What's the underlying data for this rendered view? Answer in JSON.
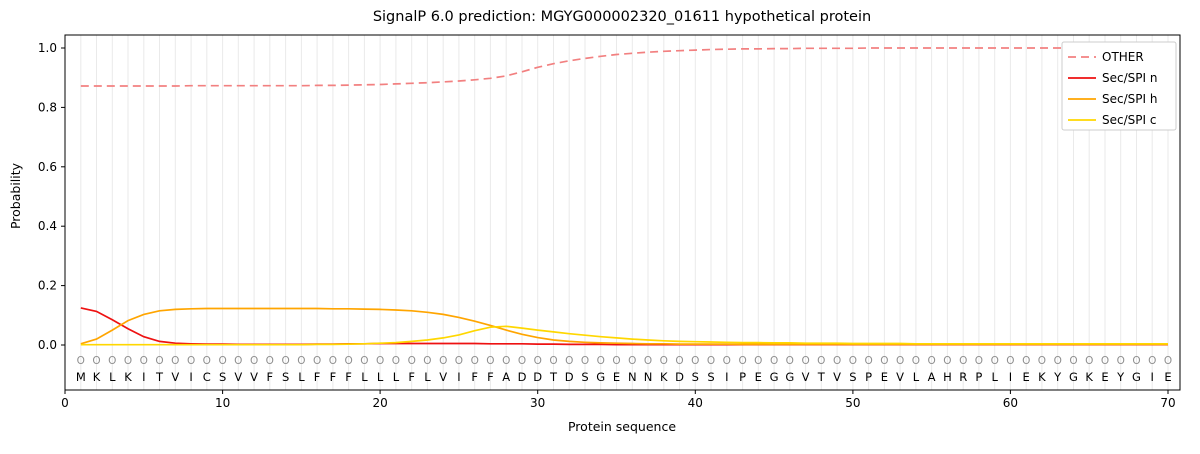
{
  "chart_data": {
    "type": "line",
    "title": "SignalP 6.0 prediction: MGYG000002320_01611 hypothetical protein",
    "xlabel": "Protein sequence",
    "ylabel": "Probability",
    "xlim": [
      0,
      71
    ],
    "ylim": [
      -0.15,
      1.05
    ],
    "xticks": [
      0,
      10,
      20,
      30,
      40,
      50,
      60,
      70
    ],
    "yticks": [
      0.0,
      0.2,
      0.4,
      0.6,
      0.8,
      1.0
    ],
    "grid": "vertical line per residue position",
    "legend_position": "upper right",
    "x_start": 1,
    "sequence": "MKLKITVICSVVFSLFFFLLLFLVIFFADDTDSGENNKDSSIPEGGVTVSPEVLAHRPLIEKYGKEYGIE",
    "residue_marks": "OOOOOOOOOOOOOOOOOOOOOOOOOOOOOOOOOOOOOOOOOOOOOOOOOOOOOOOOOOOOOOOOOOOOOO",
    "series": [
      {
        "name": "OTHER",
        "color": "#f28080",
        "style": "dashed",
        "values": [
          0.872,
          0.872,
          0.872,
          0.872,
          0.872,
          0.872,
          0.872,
          0.873,
          0.873,
          0.873,
          0.873,
          0.873,
          0.873,
          0.873,
          0.873,
          0.874,
          0.874,
          0.875,
          0.876,
          0.877,
          0.879,
          0.881,
          0.883,
          0.886,
          0.889,
          0.893,
          0.898,
          0.906,
          0.92,
          0.935,
          0.947,
          0.957,
          0.965,
          0.972,
          0.978,
          0.982,
          0.986,
          0.989,
          0.991,
          0.993,
          0.995,
          0.996,
          0.997,
          0.997,
          0.998,
          0.998,
          0.999,
          0.999,
          0.999,
          0.999,
          1.0,
          1.0,
          1.0,
          1.0,
          1.0,
          1.0,
          1.0,
          1.0,
          1.0,
          1.0,
          1.0,
          1.0,
          1.0,
          1.0,
          1.0,
          1.0,
          1.0,
          1.0,
          1.0,
          1.0
        ]
      },
      {
        "name": "Sec/SPI n",
        "color": "#ee1111",
        "style": "solid",
        "values": [
          0.125,
          0.113,
          0.085,
          0.055,
          0.028,
          0.012,
          0.006,
          0.004,
          0.003,
          0.003,
          0.002,
          0.002,
          0.002,
          0.002,
          0.002,
          0.003,
          0.003,
          0.004,
          0.004,
          0.005,
          0.005,
          0.005,
          0.005,
          0.005,
          0.005,
          0.005,
          0.004,
          0.004,
          0.004,
          0.003,
          0.003,
          0.002,
          0.002,
          0.002,
          0.001,
          0.001,
          0.001,
          0.001,
          0.001,
          0.001,
          0.001,
          0.001,
          0.001,
          0.001,
          0.001,
          0.001,
          0.001,
          0.001,
          0.001,
          0.001,
          0.001,
          0.001,
          0.001,
          0.001,
          0.001,
          0.001,
          0.001,
          0.001,
          0.001,
          0.001,
          0.001,
          0.001,
          0.001,
          0.001,
          0.001,
          0.001,
          0.001,
          0.001,
          0.001,
          0.001
        ]
      },
      {
        "name": "Sec/SPI h",
        "color": "#ffa500",
        "style": "solid",
        "values": [
          0.004,
          0.02,
          0.05,
          0.082,
          0.103,
          0.115,
          0.12,
          0.122,
          0.123,
          0.123,
          0.123,
          0.123,
          0.123,
          0.123,
          0.123,
          0.123,
          0.122,
          0.122,
          0.121,
          0.12,
          0.118,
          0.115,
          0.11,
          0.103,
          0.093,
          0.08,
          0.066,
          0.05,
          0.036,
          0.025,
          0.017,
          0.012,
          0.009,
          0.007,
          0.006,
          0.005,
          0.004,
          0.004,
          0.003,
          0.003,
          0.003,
          0.003,
          0.002,
          0.002,
          0.002,
          0.002,
          0.002,
          0.002,
          0.002,
          0.002,
          0.002,
          0.002,
          0.002,
          0.002,
          0.002,
          0.002,
          0.002,
          0.002,
          0.002,
          0.002,
          0.002,
          0.002,
          0.002,
          0.002,
          0.002,
          0.002,
          0.002,
          0.002,
          0.002,
          0.002
        ]
      },
      {
        "name": "Sec/SPI c",
        "color": "#ffd700",
        "style": "solid",
        "values": [
          0.001,
          0.001,
          0.001,
          0.001,
          0.001,
          0.001,
          0.001,
          0.001,
          0.001,
          0.001,
          0.001,
          0.001,
          0.001,
          0.001,
          0.001,
          0.002,
          0.002,
          0.003,
          0.004,
          0.006,
          0.008,
          0.012,
          0.017,
          0.024,
          0.034,
          0.048,
          0.06,
          0.063,
          0.057,
          0.05,
          0.044,
          0.038,
          0.033,
          0.028,
          0.024,
          0.02,
          0.017,
          0.014,
          0.012,
          0.011,
          0.01,
          0.009,
          0.008,
          0.008,
          0.007,
          0.007,
          0.006,
          0.006,
          0.006,
          0.005,
          0.005,
          0.005,
          0.005,
          0.004,
          0.004,
          0.004,
          0.004,
          0.004,
          0.004,
          0.004,
          0.004,
          0.004,
          0.004,
          0.004,
          0.004,
          0.004,
          0.004,
          0.004,
          0.004,
          0.004
        ]
      }
    ]
  }
}
